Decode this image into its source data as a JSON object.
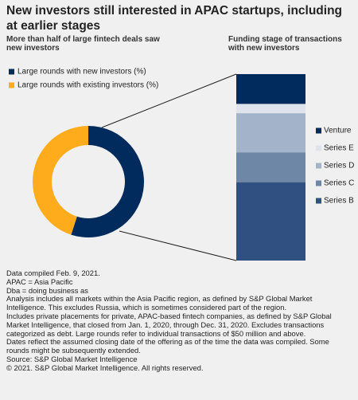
{
  "title": "New investors still interested in APAC startups, including at earlier stages",
  "chart_data": [
    {
      "type": "donut",
      "subtitle": "More than half of large fintech deals saw new investors",
      "categories": [
        "Large rounds with new investors (%)",
        "Large rounds with existing investors (%)"
      ],
      "values": [
        55,
        45
      ],
      "colors": [
        "#002b5c",
        "#ffac1c"
      ]
    },
    {
      "type": "stacked-bar",
      "subtitle": "Funding stage of transactions with new investors",
      "series": [
        {
          "name": "Venture",
          "color": "#002b5c",
          "values": [
            16
          ]
        },
        {
          "name": "Series E",
          "color": "#dfe4ec",
          "values": [
            5
          ]
        },
        {
          "name": "Series D",
          "color": "#a3b3ca",
          "values": [
            21
          ]
        },
        {
          "name": "Series C",
          "color": "#6f87a6",
          "values": [
            16
          ]
        },
        {
          "name": "Series B",
          "color": "#2f5080",
          "values": [
            42
          ]
        }
      ]
    }
  ],
  "notes": [
    "Data compiled Feb. 9, 2021.",
    "APAC = Asia Pacific",
    "Dba = doing business as",
    "Analysis includes all markets within the Asia Pacific region, as defined by S&P Global Market Intelligence. This excludes Russia, which is sometimes considered part of the region.",
    "Includes private placements for private, APAC-based fintech companies, as defined by S&P Global Market Intelligence, that closed from Jan. 1, 2020, through Dec. 31, 2020. Excludes transactions categorized as debt. Large rounds refer to individual transactions of $50 million and above.",
    "Dates reflect the assumed closing date of the offering as of the time the data was compiled. Some rounds might be subsequently extended.",
    "Source: S&P Global Market Intelligence",
    "© 2021. S&P Global Market Intelligence. All rights reserved."
  ]
}
